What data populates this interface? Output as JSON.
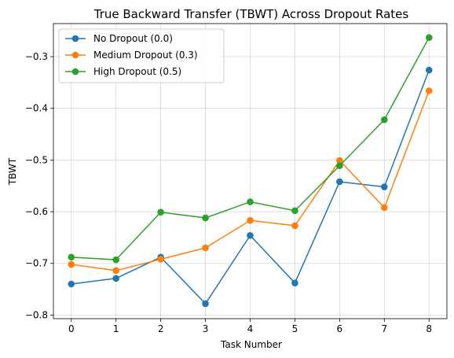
{
  "chart_data": {
    "type": "line",
    "title": "True Backward Transfer (TBWT) Across Dropout Rates",
    "xlabel": "Task Number",
    "ylabel": "TBWT",
    "x": [
      0,
      1,
      2,
      3,
      4,
      5,
      6,
      7,
      8
    ],
    "xlim": [
      -0.4,
      8.4
    ],
    "ylim": [
      -0.807,
      -0.236
    ],
    "xticks": [
      0,
      1,
      2,
      3,
      4,
      5,
      6,
      7,
      8
    ],
    "yticks": [
      -0.8,
      -0.7,
      -0.6,
      -0.5,
      -0.4,
      -0.3
    ],
    "ytick_labels": [
      "−0.8",
      "−0.7",
      "−0.6",
      "−0.5",
      "−0.4",
      "−0.3"
    ],
    "grid": true,
    "legend_position": "upper-left",
    "series": [
      {
        "name": "No Dropout (0.0)",
        "color": "#1f77b4",
        "marker": "circle",
        "values": [
          -0.74,
          -0.729,
          -0.688,
          -0.778,
          -0.646,
          -0.738,
          -0.542,
          -0.552,
          -0.326
        ]
      },
      {
        "name": "Medium Dropout (0.3)",
        "color": "#ff7f0e",
        "marker": "circle",
        "values": [
          -0.702,
          -0.714,
          -0.692,
          -0.67,
          -0.617,
          -0.627,
          -0.501,
          -0.592,
          -0.366
        ]
      },
      {
        "name": "High Dropout (0.5)",
        "color": "#2ca02c",
        "marker": "circle",
        "values": [
          -0.688,
          -0.693,
          -0.601,
          -0.612,
          -0.581,
          -0.598,
          -0.511,
          -0.422,
          -0.263
        ]
      }
    ]
  }
}
